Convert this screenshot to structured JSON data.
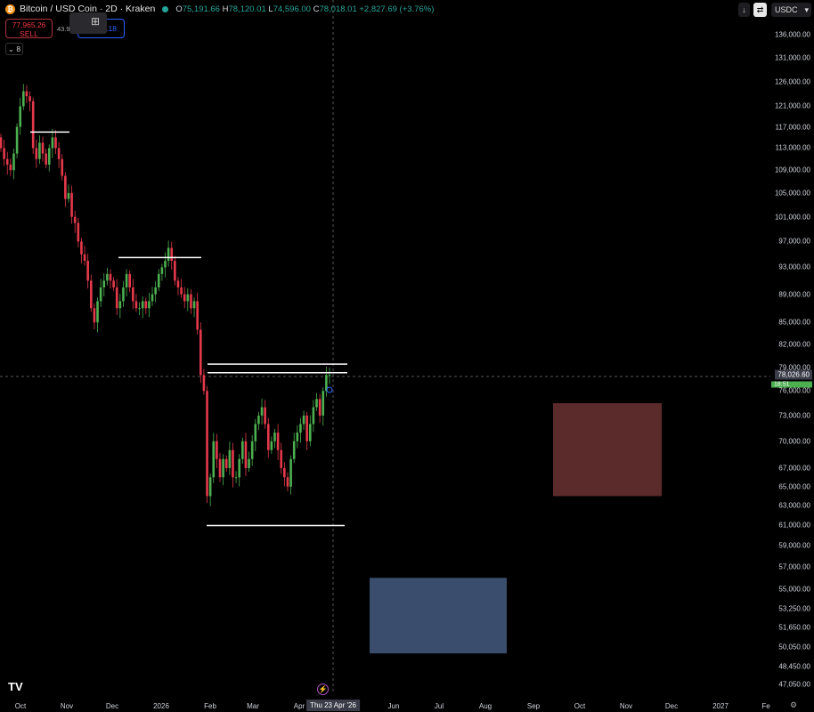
{
  "header": {
    "symbol": "Bitcoin / USD Coin · 2D · Kraken",
    "open_label": "O",
    "open": "75,191.66",
    "high_label": "H",
    "high": "78,120.01",
    "low_label": "L",
    "low": "74,596.00",
    "close_label": "C",
    "close": "78,018.01",
    "change": "+2,827.69 (+3.76%)"
  },
  "trade": {
    "sell_price": "77,965.26",
    "sell_label": "SELL",
    "spread": "43.9",
    "buy_price_partial": ".18"
  },
  "indicators_count": "8",
  "toolbar": {
    "currency": "USDC",
    "coin_icon": "bitcoin-icon"
  },
  "price_axis": [
    "136,000.00",
    "131,000.00",
    "126,000.00",
    "121,000.00",
    "117,000.00",
    "113,000.00",
    "109,000.00",
    "105,000.00",
    "101,000.00",
    "97,000.00",
    "93,000.00",
    "89,000.00",
    "85,000.00",
    "82,000.00",
    "79,000.00",
    "76,000.00",
    "73,000.00",
    "70,000.00",
    "67,000.00",
    "65,000.00",
    "63,000.00",
    "61,000.00",
    "59,000.00",
    "57,000.00",
    "55,000.00",
    "53,250.00",
    "51,650.00",
    "50,050.00",
    "48,450.00",
    "47,050.00"
  ],
  "current_price": "78,026.60",
  "countdown": "18:51",
  "time_axis": [
    "Oct",
    "Nov",
    "Dec",
    "2026",
    "Feb",
    "Mar",
    "Apr",
    "Jun",
    "Jul",
    "Aug",
    "Sep",
    "Oct",
    "Nov",
    "Dec",
    "2027",
    "Fe"
  ],
  "crosshair_date": "Thu 23 Apr '26",
  "colors": {
    "up": "#26a69a",
    "down": "#f23645",
    "bull_candle": "#4caf50",
    "bear_candle": "#e5394b",
    "red_zone": "#5b2a2b",
    "blue_zone": "#3b4d6c"
  },
  "chart_data": {
    "type": "candlestick",
    "scale": "log",
    "interval": "2D",
    "first_open": 115000,
    "closes": [
      113000,
      111000,
      110000,
      109000,
      112000,
      117000,
      121000,
      124000,
      123000,
      122000,
      113000,
      111000,
      114000,
      112000,
      110000,
      113000,
      115000,
      113000,
      111000,
      108000,
      104000,
      105000,
      101000,
      100000,
      97000,
      95000,
      94000,
      91000,
      87000,
      85000,
      88000,
      90000,
      91000,
      92000,
      91000,
      90000,
      87000,
      88000,
      90000,
      92000,
      90000,
      88000,
      87000,
      87000,
      88000,
      87000,
      88000,
      89000,
      90000,
      92000,
      93000,
      94000,
      96000,
      94000,
      91000,
      90000,
      89000,
      88000,
      89000,
      87000,
      88000,
      84000,
      78000,
      76000,
      64000,
      66000,
      70000,
      68000,
      66000,
      68000,
      67000,
      69000,
      66000,
      66000,
      68000,
      70000,
      67000,
      68000,
      70000,
      72000,
      73000,
      74000,
      72000,
      69000,
      70000,
      71000,
      69000,
      67000,
      66000,
      65000,
      68000,
      70000,
      71000,
      72000,
      73000,
      70000,
      72000,
      74000,
      75000,
      73000,
      76000,
      78000,
      78018
    ],
    "horizontal_levels": [
      116000,
      94500,
      79400,
      78300,
      61000
    ],
    "zones": [
      {
        "color": "red",
        "top": 74500,
        "bottom": 64000
      },
      {
        "color": "blue",
        "top": 56000,
        "bottom": 49500
      }
    ]
  }
}
